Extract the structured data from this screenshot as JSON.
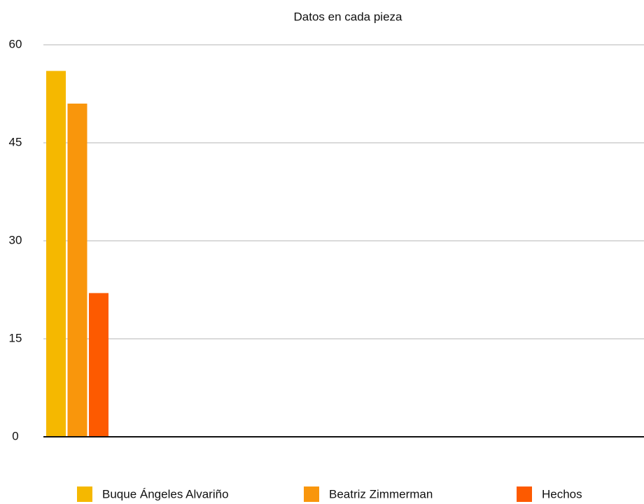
{
  "chart_data": {
    "type": "bar",
    "title": "Datos en cada pieza",
    "categories": [
      null
    ],
    "series": [
      {
        "name": "Buque Ángeles Alvariño",
        "color": "#f5b800",
        "values": [
          56
        ]
      },
      {
        "name": "Beatriz Zimmerman",
        "color": "#f9960c",
        "values": [
          51
        ]
      },
      {
        "name": "Hechos",
        "color": "#fd5a00",
        "values": [
          22
        ]
      }
    ],
    "ylim": [
      0,
      60
    ],
    "yticks": [
      0,
      15,
      30,
      45,
      60
    ],
    "grid": true
  }
}
